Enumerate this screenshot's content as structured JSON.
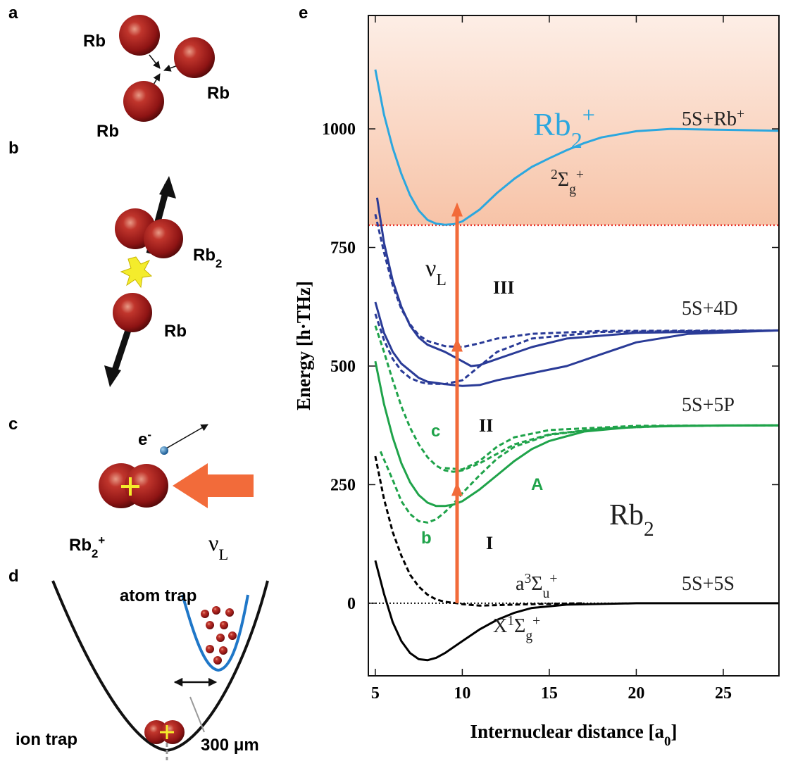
{
  "panel_labels": [
    "a",
    "b",
    "c",
    "d",
    "e"
  ],
  "panel_a": {
    "atoms": [
      "Rb",
      "Rb",
      "Rb"
    ]
  },
  "panel_b": {
    "molecule": [
      {
        "t": "Rb"
      },
      {
        "t": "2",
        "sub": true
      }
    ],
    "atom": "Rb"
  },
  "panel_c": {
    "electron": [
      {
        "t": "e"
      },
      {
        "t": "-",
        "sup": true
      }
    ],
    "ion": [
      {
        "t": "Rb"
      },
      {
        "t": "2",
        "sub": true
      },
      {
        "t": "+",
        "sup": true
      }
    ],
    "laser": [
      {
        "t": "ν"
      },
      {
        "t": "L",
        "sub": true
      }
    ]
  },
  "panel_d": {
    "atom_trap": "atom trap",
    "ion_trap": "ion trap",
    "distance": "300 μm"
  },
  "chart_data": {
    "type": "line",
    "xlabel": [
      {
        "t": "Internuclear distance [a"
      },
      {
        "t": "0",
        "sub": true
      },
      {
        "t": "]"
      }
    ],
    "ylabel": "Energy [h·THz]",
    "xlim": [
      4.6,
      28.2
    ],
    "ylim": [
      -153,
      1239
    ],
    "xticks": [
      5,
      10,
      15,
      20,
      25
    ],
    "yticks": [
      0,
      250,
      500,
      750,
      1000
    ],
    "continuum_threshold": 797,
    "zero_line": 0,
    "laser_arrow": {
      "x": 9.7,
      "levels": [
        0,
        256,
        560,
        845
      ],
      "color": "#f26b3a"
    },
    "series": [
      {
        "color": "#000000",
        "dash": false,
        "x": [
          5,
          5.5,
          6,
          6.5,
          7,
          7.5,
          8,
          8.5,
          9,
          10,
          11,
          12,
          13,
          14,
          16,
          20,
          28.2
        ],
        "values": [
          90,
          20,
          -40,
          -80,
          -105,
          -118,
          -120,
          -115,
          -105,
          -80,
          -55,
          -35,
          -20,
          -10,
          -3,
          0,
          0
        ]
      },
      {
        "color": "#000000",
        "dash": true,
        "x": [
          5,
          5.5,
          6,
          6.5,
          7,
          7.5,
          8,
          8.5,
          9,
          9.7,
          10,
          11,
          12,
          14,
          17
        ],
        "values": [
          310,
          220,
          150,
          100,
          60,
          35,
          18,
          8,
          3,
          0,
          -2,
          -5,
          -4,
          -2,
          0
        ]
      },
      {
        "color": "#1fa34a",
        "dash": false,
        "x": [
          5,
          5.5,
          6,
          6.5,
          7,
          7.5,
          8,
          8.5,
          9,
          9.5,
          10,
          11,
          12,
          13,
          14,
          15,
          17,
          20,
          25,
          28.2
        ],
        "values": [
          510,
          420,
          350,
          295,
          255,
          228,
          212,
          205,
          205,
          208,
          215,
          240,
          270,
          300,
          325,
          342,
          362,
          372,
          375,
          375
        ]
      },
      {
        "color": "#1fa34a",
        "dash": true,
        "x": [
          5.3,
          6,
          6.5,
          7,
          7.5,
          8,
          8.5,
          9,
          9.5,
          10,
          11,
          12,
          13,
          15,
          18,
          22,
          28.2
        ],
        "values": [
          320,
          260,
          215,
          188,
          173,
          170,
          177,
          192,
          210,
          232,
          270,
          305,
          330,
          355,
          368,
          374,
          375
        ]
      },
      {
        "color": "#1fa34a",
        "dash": true,
        "x": [
          5,
          5.5,
          6,
          6.5,
          7,
          7.5,
          8,
          8.5,
          9,
          9.5,
          10,
          11,
          12,
          13,
          15,
          18,
          22,
          28.2
        ],
        "values": [
          585,
          530,
          470,
          415,
          370,
          335,
          308,
          290,
          280,
          277,
          280,
          295,
          315,
          335,
          356,
          368,
          374,
          375
        ]
      },
      {
        "color": "#1fa34a",
        "dash": true,
        "x": [
          9,
          10,
          11,
          12,
          13,
          15,
          20,
          28.2
        ],
        "values": [
          285,
          282,
          300,
          330,
          350,
          365,
          374,
          375
        ]
      },
      {
        "color": "#2a3b97",
        "dash": false,
        "x": [
          5,
          5.5,
          6,
          6.5,
          7,
          7.5,
          8,
          9,
          10,
          11,
          12,
          14,
          16,
          18,
          20,
          23,
          28.2
        ],
        "values": [
          635,
          570,
          530,
          505,
          490,
          475,
          467,
          462,
          458,
          460,
          470,
          485,
          500,
          525,
          550,
          568,
          575
        ]
      },
      {
        "color": "#2a3b97",
        "dash": false,
        "x": [
          5.1,
          5.5,
          6,
          6.5,
          7,
          7.5,
          8,
          9,
          10,
          10.5,
          11,
          12,
          14,
          16,
          20,
          28.2
        ],
        "values": [
          855,
          760,
          680,
          625,
          585,
          560,
          545,
          530,
          510,
          500,
          502,
          515,
          540,
          558,
          570,
          575
        ]
      },
      {
        "color": "#2a3b97",
        "dash": true,
        "x": [
          5,
          5.5,
          6,
          6.5,
          7,
          7.5,
          8,
          9,
          10,
          11,
          12,
          14,
          18,
          28.2
        ],
        "values": [
          820,
          740,
          670,
          620,
          588,
          565,
          553,
          542,
          540,
          548,
          558,
          568,
          574,
          575
        ]
      },
      {
        "color": "#2a3b97",
        "dash": true,
        "x": [
          5,
          5.5,
          6,
          6.5,
          7,
          7.5,
          8,
          9,
          10,
          11,
          12,
          14,
          18,
          28.2
        ],
        "values": [
          610,
          555,
          515,
          490,
          475,
          467,
          463,
          462,
          470,
          500,
          530,
          558,
          572,
          575
        ]
      },
      {
        "color": "#2ba7df",
        "dash": false,
        "x": [
          5,
          5.5,
          6,
          6.5,
          7,
          7.5,
          8,
          8.5,
          9,
          9.5,
          10,
          11,
          12,
          13,
          14,
          15,
          16,
          17,
          18,
          20,
          22,
          25,
          28.2
        ],
        "values": [
          1125,
          1030,
          960,
          905,
          860,
          828,
          808,
          800,
          798,
          799,
          805,
          830,
          865,
          895,
          920,
          938,
          955,
          970,
          982,
          995,
          1000,
          998,
          996
        ]
      }
    ],
    "annotations": [
      {
        "color": "#2ba7df",
        "parts": [
          {
            "t": "Rb"
          },
          {
            "t": "2",
            "sub": true
          },
          {
            "t": "+",
            "sup": true
          }
        ]
      },
      {
        "color": "#222222",
        "parts": [
          {
            "t": "5S+Rb"
          },
          {
            "t": "+",
            "sup": true
          }
        ]
      },
      {
        "color": "#222222",
        "parts": [
          {
            "t": "2",
            "sup": true
          },
          {
            "t": "Σ"
          },
          {
            "t": "g",
            "sub": true
          },
          {
            "t": "+",
            "sup": true
          }
        ]
      },
      {
        "color": "#222222",
        "parts": [
          {
            "t": "5S+4D"
          }
        ]
      },
      {
        "color": "#222222",
        "parts": [
          {
            "t": "5S+5P"
          }
        ]
      },
      {
        "color": "#222222",
        "parts": [
          {
            "t": "5S+5S"
          }
        ]
      },
      {
        "color": "#222222",
        "parts": [
          {
            "t": "Rb"
          },
          {
            "t": "2",
            "sub": true
          }
        ]
      },
      {
        "color": "#222222",
        "parts": [
          {
            "t": "a"
          },
          {
            "t": "3",
            "sup": true
          },
          {
            "t": "Σ"
          },
          {
            "t": "u",
            "sub": true
          },
          {
            "t": "+",
            "sup": true
          }
        ]
      },
      {
        "color": "#222222",
        "parts": [
          {
            "t": "X"
          },
          {
            "t": "1",
            "sup": true
          },
          {
            "t": "Σ"
          },
          {
            "t": "g",
            "sub": true
          },
          {
            "t": "+",
            "sup": true
          }
        ]
      },
      {
        "color": "#1fa34a",
        "parts": [
          {
            "t": "A"
          }
        ]
      },
      {
        "color": "#1fa34a",
        "parts": [
          {
            "t": "b"
          }
        ]
      },
      {
        "color": "#1fa34a",
        "parts": [
          {
            "t": "c"
          }
        ]
      },
      {
        "color": "#111111",
        "parts": [
          {
            "t": "I"
          }
        ]
      },
      {
        "color": "#111111",
        "parts": [
          {
            "t": "II"
          }
        ]
      },
      {
        "color": "#111111",
        "parts": [
          {
            "t": "III"
          }
        ]
      },
      {
        "color": "#111111",
        "parts": [
          {
            "t": "ν"
          },
          {
            "t": "L",
            "sub": true
          }
        ]
      }
    ]
  }
}
